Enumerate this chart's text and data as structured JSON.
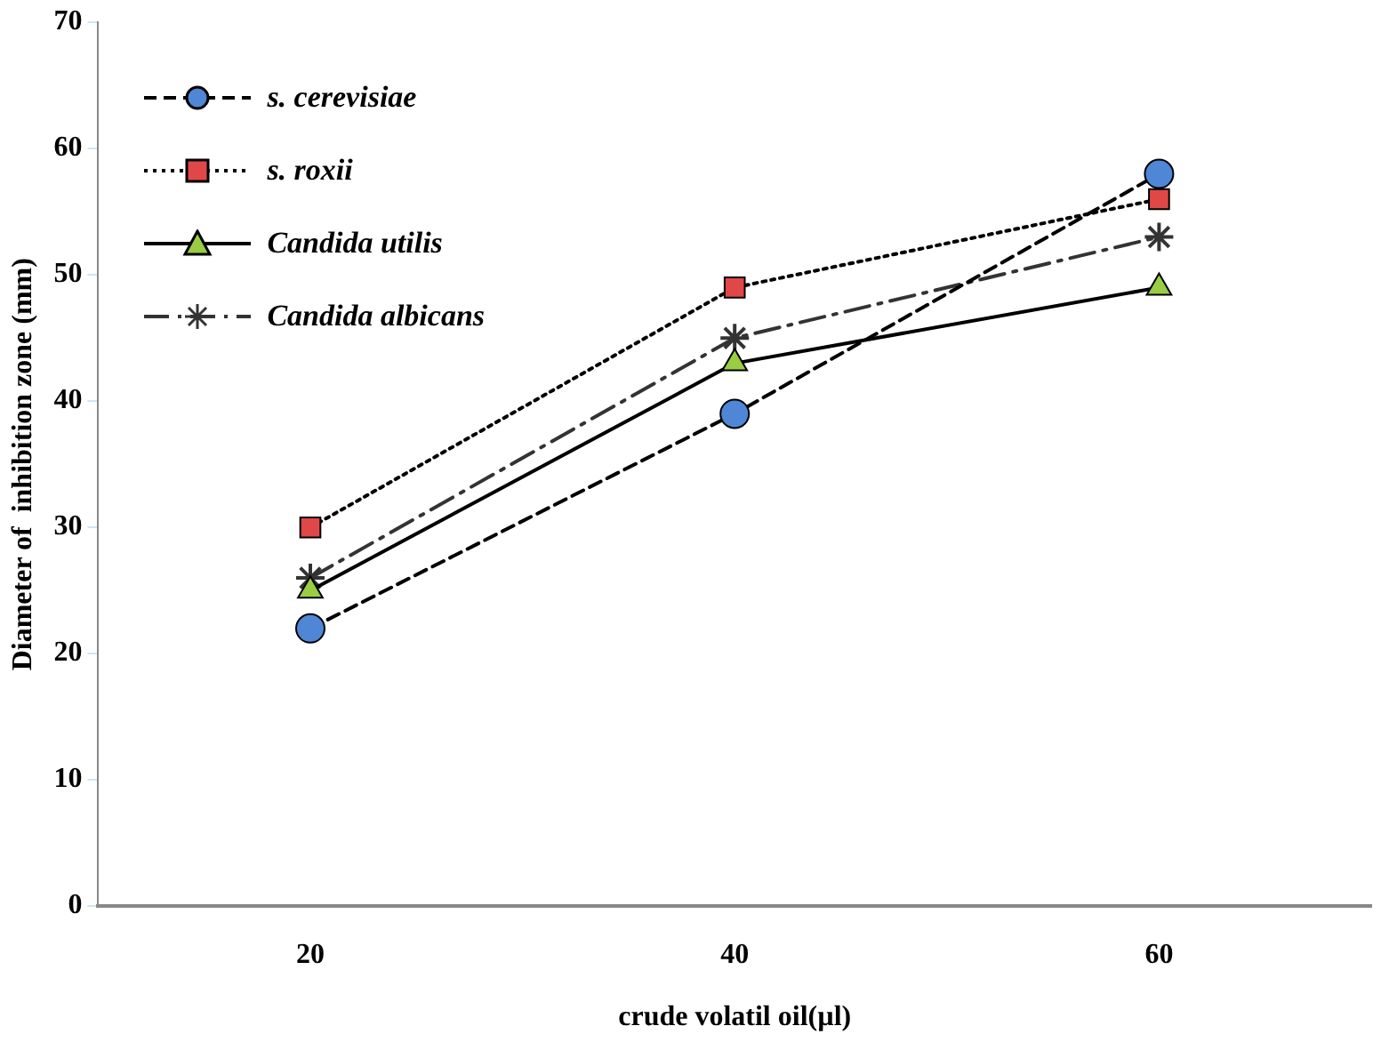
{
  "chart_data": {
    "type": "line",
    "xlabel": "crude volatil oil(µl)",
    "ylabel": "Diameter of  inhibition zone (mm)",
    "categories": [
      "20",
      "40",
      "60"
    ],
    "ylim": [
      0,
      70
    ],
    "yticks": [
      0,
      10,
      20,
      30,
      40,
      50,
      60,
      70
    ],
    "legend": "top left",
    "grid": false,
    "series": [
      {
        "name": "s. cerevisiae",
        "color": "#4f86d6",
        "marker": "circle",
        "line_style": "dashed",
        "values": [
          22,
          39,
          58
        ]
      },
      {
        "name": "s. roxii",
        "color": "#e04848",
        "marker": "square",
        "line_style": "dotted",
        "values": [
          30,
          49,
          56
        ]
      },
      {
        "name": "Candida utilis",
        "color": "#9acd44",
        "marker": "triangle",
        "line_style": "solid",
        "values": [
          25,
          43,
          49
        ]
      },
      {
        "name": "Candida albicans",
        "color": "#333333",
        "marker": "cross",
        "line_style": "dashdot",
        "values": [
          26,
          45,
          53
        ]
      }
    ]
  }
}
